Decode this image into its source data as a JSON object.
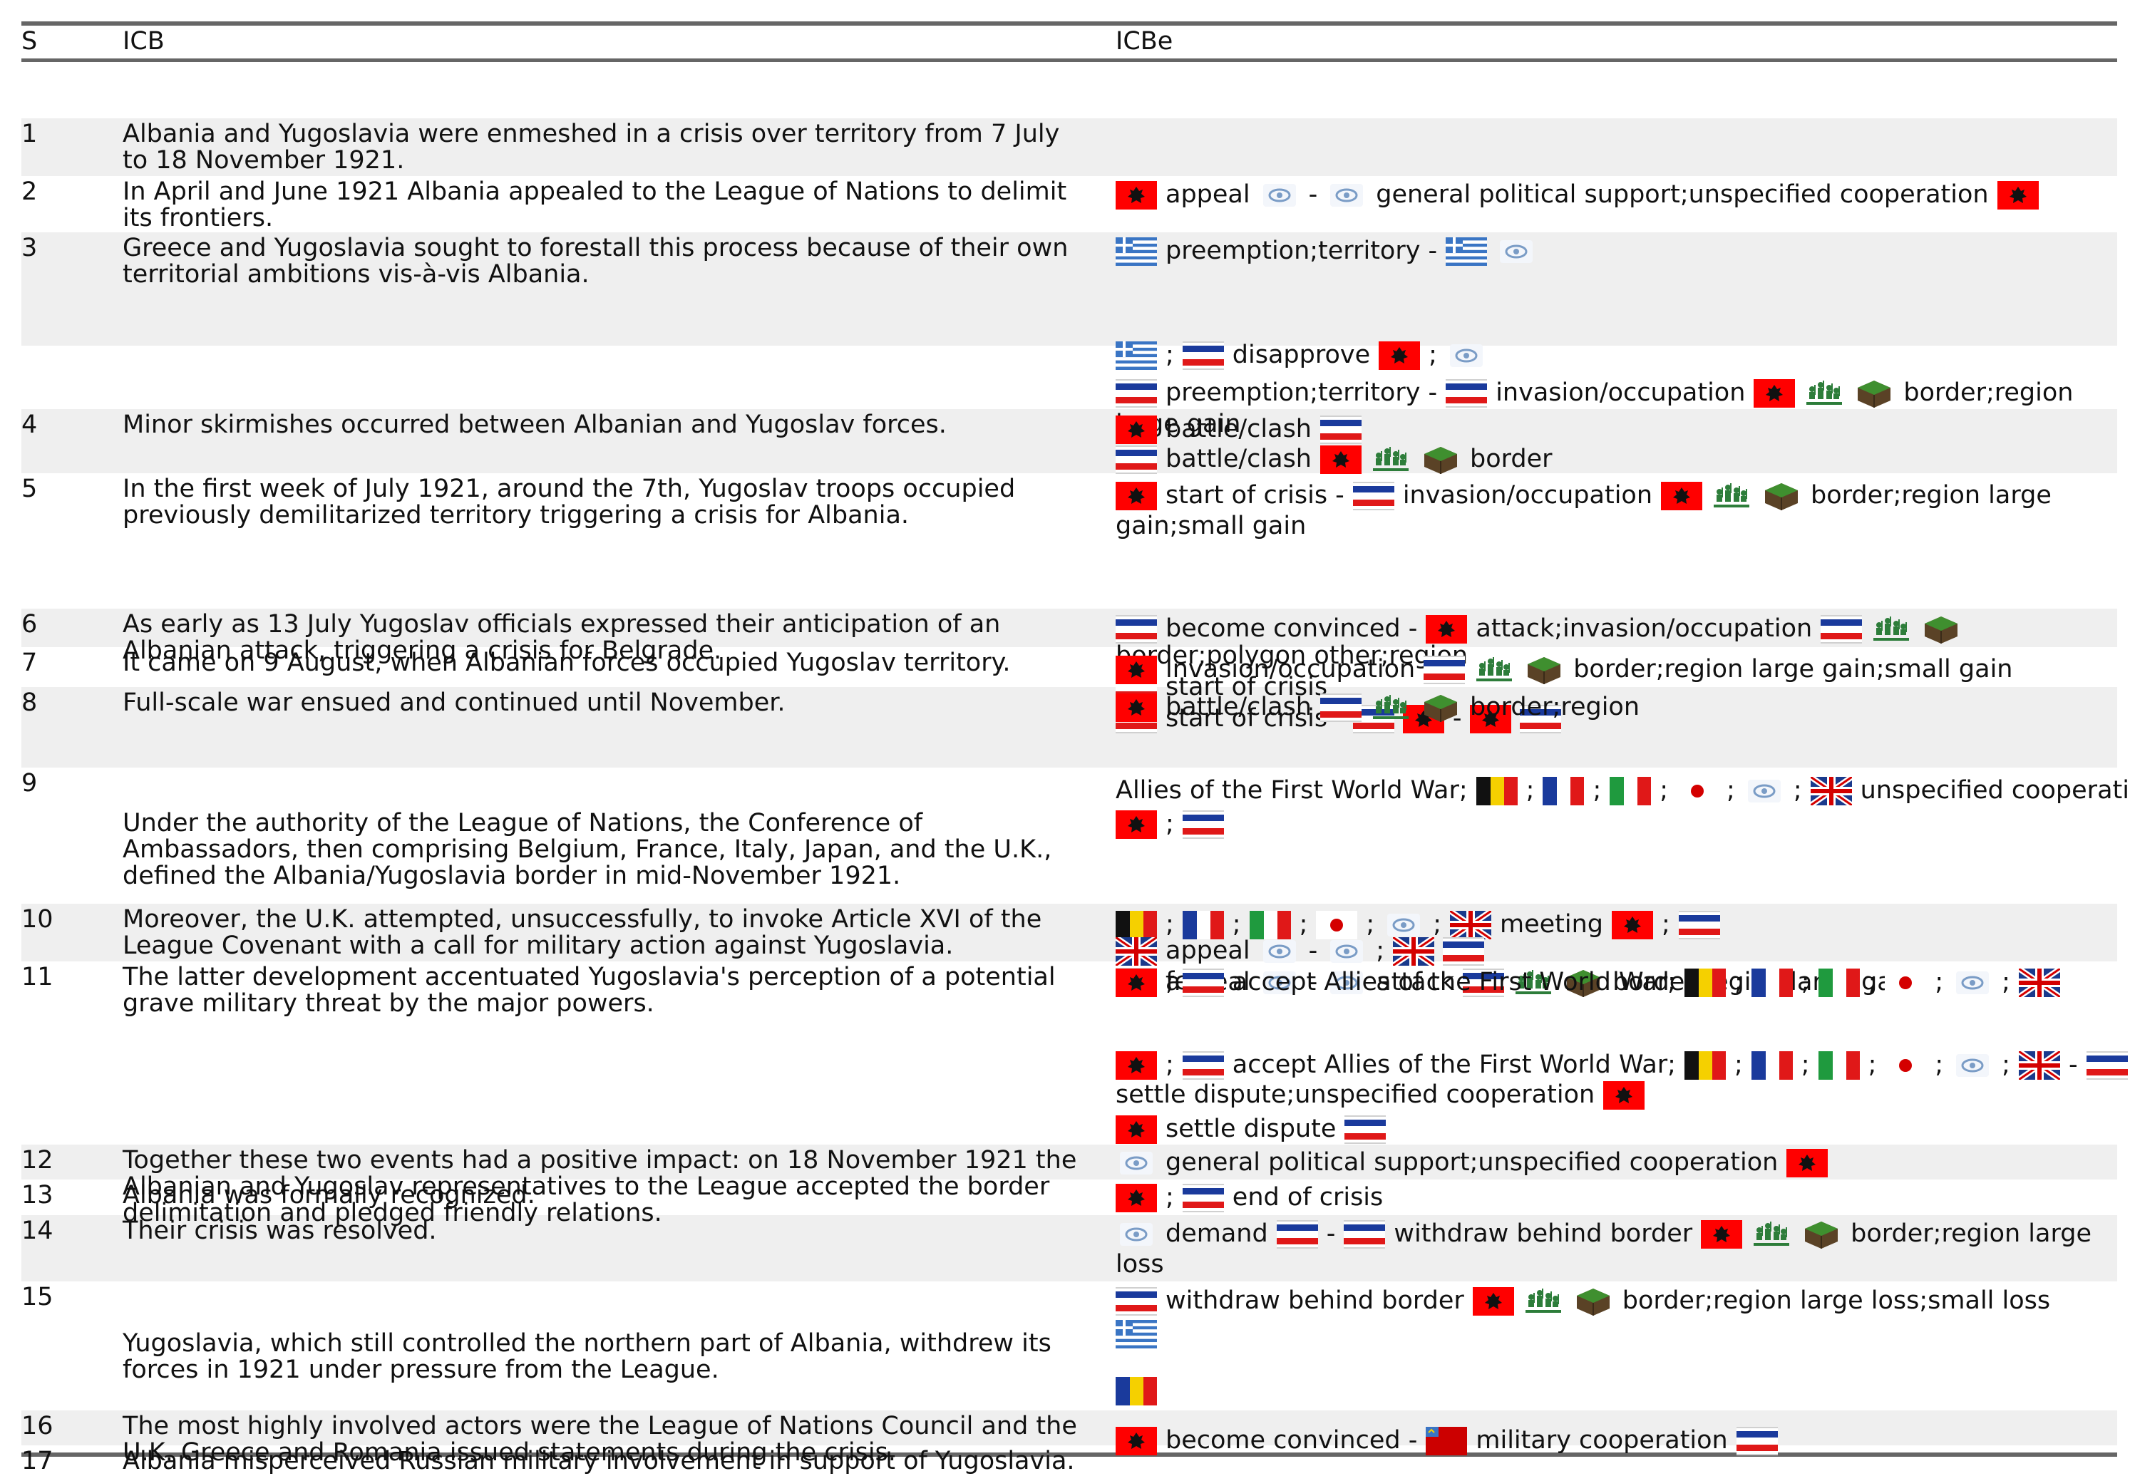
{
  "header": {
    "s": "S",
    "icb": "ICB",
    "icbe": "ICBe"
  },
  "rows": [
    {
      "s": "1",
      "icb": [
        "Albania and Yugoslavia were enmeshed in a crisis over territory from 7 July",
        "to 18 November 1921."
      ],
      "icbe": []
    },
    {
      "s": "2",
      "icb": [
        "In April and June 1921 Albania appealed to the League of Nations to delimit",
        "its frontiers."
      ],
      "icbe": [
        [
          [
            "flag",
            "albania"
          ],
          [
            "text",
            "appeal"
          ],
          [
            "icon",
            "eye"
          ],
          [
            "text",
            "-"
          ],
          [
            "icon",
            "eye"
          ],
          [
            "text",
            "general political support;unspecified cooperation"
          ],
          [
            "flag",
            "albania"
          ]
        ]
      ]
    },
    {
      "s": "3",
      "icb": [
        "Greece and Yugoslavia sought to forestall this process because of their own",
        "territorial ambitions vis-à-vis Albania."
      ],
      "icbe": [
        [
          [
            "flag",
            "greece"
          ],
          [
            "text",
            "preemption;territory -"
          ],
          [
            "flag",
            "greece"
          ],
          [
            "icon",
            "eye"
          ]
        ]
      ]
    },
    {
      "s": "",
      "icb": [],
      "icbe": [
        [
          [
            "flag",
            "greece"
          ],
          [
            "text",
            ";"
          ],
          [
            "flag",
            "yugoslavia"
          ],
          [
            "text",
            "disapprove"
          ],
          [
            "flag",
            "albania"
          ],
          [
            "text",
            ";"
          ],
          [
            "icon",
            "eye"
          ]
        ],
        [
          [
            "flag",
            "yugoslavia"
          ],
          [
            "text",
            "preemption;territory -"
          ],
          [
            "flag",
            "yugoslavia"
          ],
          [
            "text",
            "invasion/occupation"
          ],
          [
            "flag",
            "albania"
          ],
          [
            "icon",
            "troops"
          ],
          [
            "icon",
            "land"
          ],
          [
            "text",
            "border;region"
          ]
        ],
        [
          [
            "text",
            "large gain"
          ]
        ]
      ]
    },
    {
      "s": "4",
      "icb": [
        "Minor skirmishes occurred between Albanian and Yugoslav forces."
      ],
      "icbe": [
        [
          [
            "flag",
            "albania"
          ],
          [
            "text",
            "battle/clash"
          ],
          [
            "flag",
            "yugoslavia"
          ]
        ],
        [
          [
            "flag",
            "yugoslavia"
          ],
          [
            "text",
            "battle/clash"
          ],
          [
            "flag",
            "albania"
          ],
          [
            "icon",
            "troops"
          ],
          [
            "icon",
            "land"
          ],
          [
            "text",
            "border"
          ]
        ]
      ]
    },
    {
      "s": "5",
      "icb": [
        "In the first week of July 1921, around the 7th, Yugoslav troops occupied",
        "previously demilitarized territory triggering a crisis for Albania."
      ],
      "icbe": [
        [
          [
            "flag",
            "albania"
          ],
          [
            "text",
            "start of crisis -"
          ],
          [
            "flag",
            "yugoslavia"
          ],
          [
            "text",
            "invasion/occupation"
          ],
          [
            "flag",
            "albania"
          ],
          [
            "icon",
            "troops"
          ],
          [
            "icon",
            "land"
          ],
          [
            "text",
            "border;region large"
          ]
        ],
        [
          [
            "text",
            "gain;small gain"
          ]
        ]
      ]
    },
    {
      "s": "6",
      "icb": [
        "As early as 13 July Yugoslav officials expressed their anticipation of an",
        "Albanian attack, triggering a crisis for Belgrade."
      ],
      "icbe": [
        [
          [
            "flag",
            "yugoslavia"
          ],
          [
            "text",
            "become convinced -"
          ],
          [
            "flag",
            "albania"
          ],
          [
            "text",
            "attack;invasion/occupation"
          ],
          [
            "flag",
            "yugoslavia"
          ],
          [
            "icon",
            "troops"
          ],
          [
            "icon",
            "land"
          ]
        ],
        [
          [
            "text",
            "border;polygon other;region"
          ]
        ],
        [
          [
            "flag",
            "yugoslavia"
          ],
          [
            "text",
            "start of crisis"
          ]
        ],
        [
          [
            "flag",
            "yugoslavia"
          ],
          [
            "text",
            "start of crisis -"
          ],
          [
            "flag",
            "yugoslavia"
          ],
          [
            "flag",
            "albania"
          ],
          [
            "text",
            "-"
          ],
          [
            "flag",
            "albania"
          ],
          [
            "flag",
            "yugoslavia"
          ]
        ]
      ]
    },
    {
      "s": "7",
      "icb": [
        "It came on 9 August, when Albanian forces occupied Yugoslav territory."
      ],
      "icbe": [
        [
          [
            "flag",
            "albania"
          ],
          [
            "text",
            "invasion/occupation"
          ],
          [
            "flag",
            "yugoslavia"
          ],
          [
            "icon",
            "troops"
          ],
          [
            "icon",
            "land"
          ],
          [
            "text",
            "border;region large gain;small gain"
          ]
        ]
      ]
    },
    {
      "s": "8",
      "icb": [
        "Full-scale war ensued and continued until November."
      ],
      "icbe": [
        [
          [
            "flag",
            "albania"
          ],
          [
            "text",
            "battle/clash"
          ],
          [
            "flag",
            "yugoslavia"
          ],
          [
            "icon",
            "troops"
          ],
          [
            "icon",
            "land"
          ],
          [
            "text",
            "border;region"
          ]
        ]
      ]
    },
    {
      "s": "9",
      "icb": [
        "Under the authority of the League of Nations, the Conference of",
        "Ambassadors, then comprising Belgium, France, Italy, Japan, and the U.K.,",
        "defined the Albania/Yugoslavia border in mid-November 1921."
      ],
      "icbe": [
        [
          [
            "text",
            "Allies of the First World War;"
          ],
          [
            "flag",
            "belgium"
          ],
          [
            "text",
            ";"
          ],
          [
            "flag",
            "france"
          ],
          [
            "text",
            ";"
          ],
          [
            "flag",
            "italy"
          ],
          [
            "text",
            ";"
          ],
          [
            "flag",
            "japan"
          ],
          [
            "text",
            ";"
          ],
          [
            "icon",
            "eye"
          ],
          [
            "text",
            ";"
          ],
          [
            "flag",
            "uk"
          ],
          [
            "text",
            "unspecified cooperation"
          ]
        ],
        [
          [
            "flag",
            "albania"
          ],
          [
            "text",
            ";"
          ],
          [
            "flag",
            "yugoslavia"
          ]
        ]
      ]
    },
    {
      "s": "10",
      "icb": [
        "Moreover, the U.K. attempted, unsuccessfully, to invoke Article XVI of the",
        "League Covenant with a call for military action against Yugoslavia."
      ],
      "icbe": [
        [
          [
            "flag",
            "belgium"
          ],
          [
            "text",
            ";"
          ],
          [
            "flag",
            "france"
          ],
          [
            "text",
            ";"
          ],
          [
            "flag",
            "italy"
          ],
          [
            "text",
            ";"
          ],
          [
            "flag",
            "japan"
          ],
          [
            "text",
            ";"
          ],
          [
            "icon",
            "eye"
          ],
          [
            "text",
            ";"
          ],
          [
            "flag",
            "uk"
          ],
          [
            "text",
            "meeting"
          ],
          [
            "flag",
            "albania"
          ],
          [
            "text",
            ";"
          ],
          [
            "flag",
            "yugoslavia"
          ]
        ],
        [
          [
            "flag",
            "uk"
          ],
          [
            "text",
            "appeal"
          ],
          [
            "icon",
            "eye"
          ],
          [
            "text",
            "-"
          ],
          [
            "icon",
            "eye"
          ],
          [
            "text",
            ";"
          ],
          [
            "flag",
            "uk"
          ],
          [
            "flag",
            "yugoslavia"
          ]
        ],
        [
          [
            "flag",
            "uk"
          ],
          [
            "text",
            "appeal"
          ],
          [
            "icon",
            "eye"
          ],
          [
            "text",
            "-"
          ],
          [
            "icon",
            "eye"
          ],
          [
            "text",
            "attack"
          ],
          [
            "flag",
            "yugoslavia"
          ],
          [
            "icon",
            "troops"
          ],
          [
            "icon",
            "land"
          ],
          [
            "text",
            "border;region large gain"
          ]
        ]
      ]
    },
    {
      "s": "11",
      "icb": [
        "The latter development accentuated Yugoslavia's perception of a potential",
        "grave military threat by the major powers."
      ],
      "icbe": [
        [
          [
            "flag",
            "yugoslavia"
          ],
          [
            "text",
            "fear"
          ]
        ]
      ]
    },
    {
      "s": "12",
      "icb": [
        "Together these two events had a positive impact: on 18 November 1921 the",
        "Albanian and Yugoslav representatives to the League accepted the border",
        "delimitation and pledged friendly relations."
      ],
      "icbe": [
        [
          [
            "flag",
            "albania"
          ],
          [
            "text",
            ";"
          ],
          [
            "flag",
            "yugoslavia"
          ],
          [
            "text",
            "accept Allies of the First World War;"
          ],
          [
            "flag",
            "belgium"
          ],
          [
            "text",
            ";"
          ],
          [
            "flag",
            "france"
          ],
          [
            "text",
            ";"
          ],
          [
            "flag",
            "italy"
          ],
          [
            "text",
            ";"
          ],
          [
            "flag",
            "japan"
          ],
          [
            "text",
            ";"
          ],
          [
            "icon",
            "eye"
          ],
          [
            "text",
            ";"
          ],
          [
            "flag",
            "uk"
          ]
        ],
        [
          [
            "flag",
            "albania"
          ],
          [
            "text",
            ";"
          ],
          [
            "flag",
            "yugoslavia"
          ],
          [
            "text",
            "accept Allies of the First World War;"
          ],
          [
            "flag",
            "belgium"
          ],
          [
            "text",
            ";"
          ],
          [
            "flag",
            "france"
          ],
          [
            "text",
            ";"
          ],
          [
            "flag",
            "italy"
          ],
          [
            "text",
            ";"
          ],
          [
            "flag",
            "japan"
          ],
          [
            "text",
            ";"
          ],
          [
            "icon",
            "eye"
          ],
          [
            "text",
            ";"
          ],
          [
            "flag",
            "uk"
          ],
          [
            "text",
            "-"
          ],
          [
            "flag",
            "yugoslavia"
          ]
        ],
        [
          [
            "text",
            "settle dispute;unspecified cooperation"
          ],
          [
            "flag",
            "albania"
          ]
        ],
        [
          [
            "flag",
            "albania"
          ],
          [
            "text",
            "settle dispute"
          ],
          [
            "flag",
            "yugoslavia"
          ]
        ]
      ]
    },
    {
      "s": "13",
      "icb": [
        "Albania was formally recognized."
      ],
      "icbe": [
        [
          [
            "icon",
            "eye"
          ],
          [
            "text",
            "general political support;unspecified cooperation"
          ],
          [
            "flag",
            "albania"
          ]
        ]
      ]
    },
    {
      "s": "14",
      "icb": [
        "Their crisis was resolved."
      ],
      "icbe": [
        [
          [
            "flag",
            "albania"
          ],
          [
            "text",
            ";"
          ],
          [
            "flag",
            "yugoslavia"
          ],
          [
            "text",
            "end of crisis"
          ]
        ]
      ]
    },
    {
      "s": "15",
      "icb": [
        "Yugoslavia, which still controlled the northern part of Albania, withdrew its",
        "forces in 1921 under pressure from the League."
      ],
      "icbe": [
        [
          [
            "icon",
            "eye"
          ],
          [
            "text",
            "demand"
          ],
          [
            "flag",
            "yugoslavia"
          ],
          [
            "text",
            "-"
          ],
          [
            "flag",
            "yugoslavia"
          ],
          [
            "text",
            "withdraw behind border"
          ],
          [
            "flag",
            "albania"
          ],
          [
            "icon",
            "troops"
          ],
          [
            "icon",
            "land"
          ],
          [
            "text",
            "border;region large"
          ]
        ],
        [
          [
            "text",
            "loss"
          ]
        ]
      ]
    },
    {
      "s": "16",
      "icb": [
        "The most highly involved actors were the League of Nations Council and the",
        "U.K. Greece and Romania issued statements during the crisis."
      ],
      "icbe": [
        [
          [
            "flag",
            "yugoslavia"
          ],
          [
            "text",
            "withdraw behind border"
          ],
          [
            "flag",
            "albania"
          ],
          [
            "icon",
            "troops"
          ],
          [
            "icon",
            "land"
          ],
          [
            "text",
            "border;region large loss;small loss"
          ]
        ],
        [
          [
            "flag",
            "greece"
          ]
        ],
        [
          [
            "flag",
            "romania"
          ]
        ]
      ]
    },
    {
      "s": "17",
      "icb": [
        "Albania misperceived Russian military involvement in support of Yugoslavia."
      ],
      "icbe": [
        [
          [
            "flag",
            "albania"
          ],
          [
            "text",
            "become convinced -"
          ],
          [
            "flag",
            "russia"
          ],
          [
            "text",
            "military cooperation"
          ],
          [
            "flag",
            "yugoslavia"
          ]
        ]
      ]
    }
  ],
  "icons": {
    "flags": [
      "albania-flag-icon",
      "yugoslavia-flag-icon",
      "greece-flag-icon",
      "belgium-flag-icon",
      "france-flag-icon",
      "italy-flag-icon",
      "japan-flag-icon",
      "uk-flag-icon",
      "romania-flag-icon",
      "russia-flag-icon"
    ],
    "other": [
      "eye-icon",
      "troops-icon",
      "land-icon"
    ]
  },
  "colors": {
    "rule": "#666666",
    "shade": "#efefef",
    "albania_red": "#ff0000",
    "yugoslavia_blue": "#1a3a9c"
  }
}
